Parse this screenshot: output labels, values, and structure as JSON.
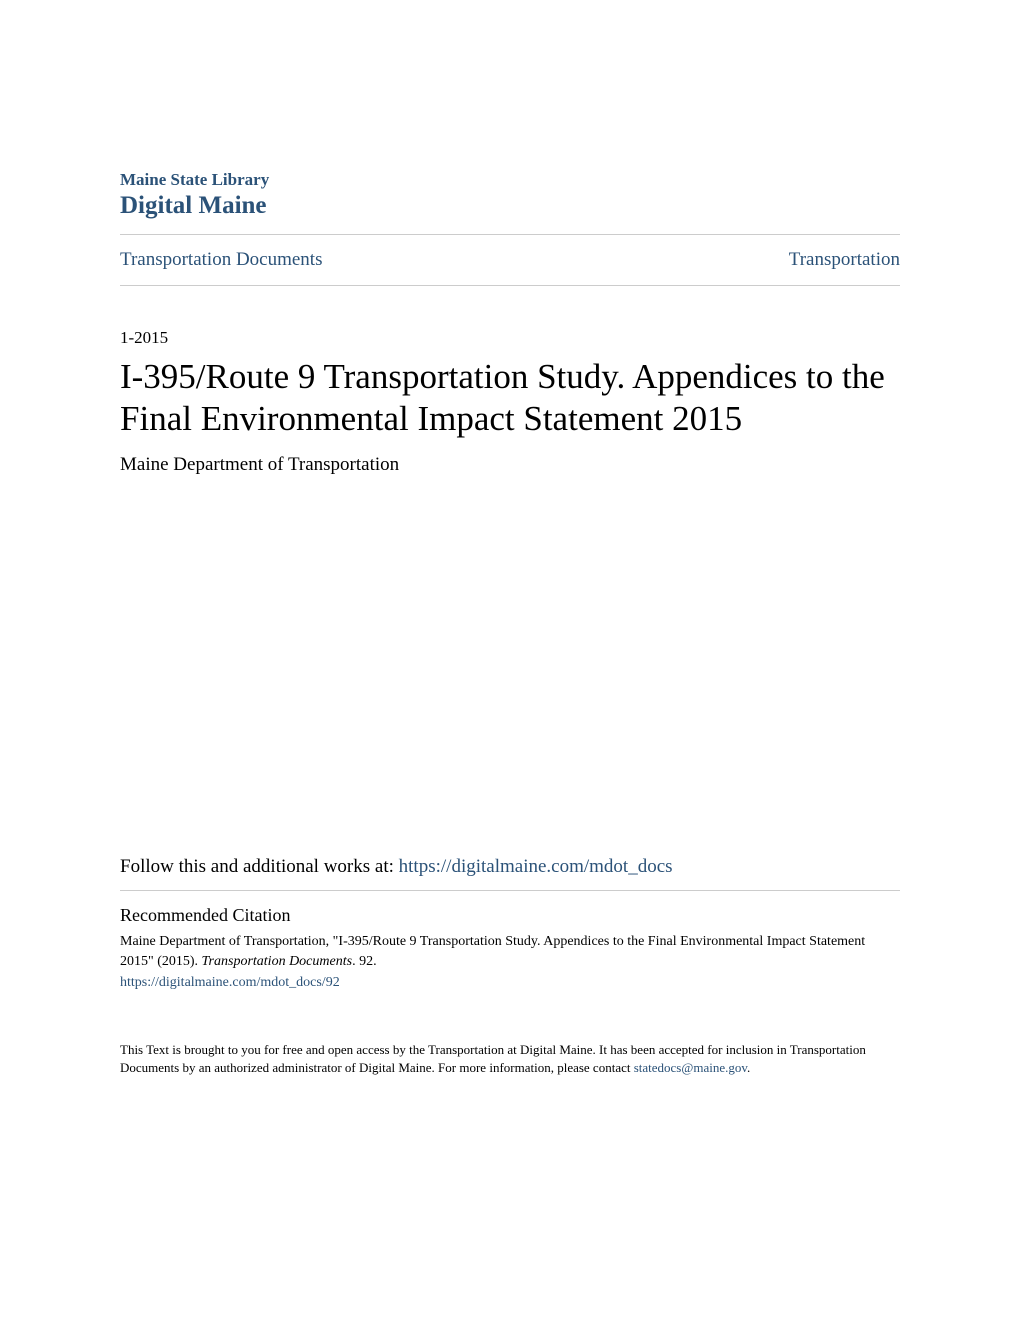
{
  "header": {
    "library_label": "Maine State Library",
    "site_name": "Digital Maine"
  },
  "breadcrumb": {
    "left": "Transportation Documents",
    "right": "Transportation"
  },
  "document": {
    "date": "1-2015",
    "title": "I-395/Route 9 Transportation Study. Appendices to the Final Environmental Impact Statement 2015",
    "author": "Maine Department of Transportation"
  },
  "follow": {
    "prefix": "Follow this and additional works at: ",
    "url": "https://digitalmaine.com/mdot_docs"
  },
  "citation": {
    "heading": "Recommended Citation",
    "body_part1": "Maine Department of Transportation, \"I-395/Route 9 Transportation Study. Appendices to the Final Environmental Impact Statement 2015\" (2015). ",
    "body_italic": "Transportation Documents",
    "body_part2": ". 92.",
    "url": "https://digitalmaine.com/mdot_docs/92"
  },
  "footer": {
    "text_part1": "This Text is brought to you for free and open access by the Transportation at Digital Maine. It has been accepted for inclusion in Transportation Documents by an authorized administrator of Digital Maine. For more information, please contact ",
    "email": "statedocs@maine.gov",
    "text_part2": "."
  },
  "colors": {
    "link_color": "#2b5278",
    "text_color": "#000000",
    "divider_color": "#cccccc",
    "background": "#ffffff"
  },
  "typography": {
    "library_label_size": 17,
    "site_name_size": 25,
    "breadcrumb_size": 19,
    "date_size": 17,
    "title_size": 35,
    "author_size": 19,
    "follow_size": 19,
    "citation_heading_size": 18,
    "citation_body_size": 14,
    "footer_size": 13
  }
}
